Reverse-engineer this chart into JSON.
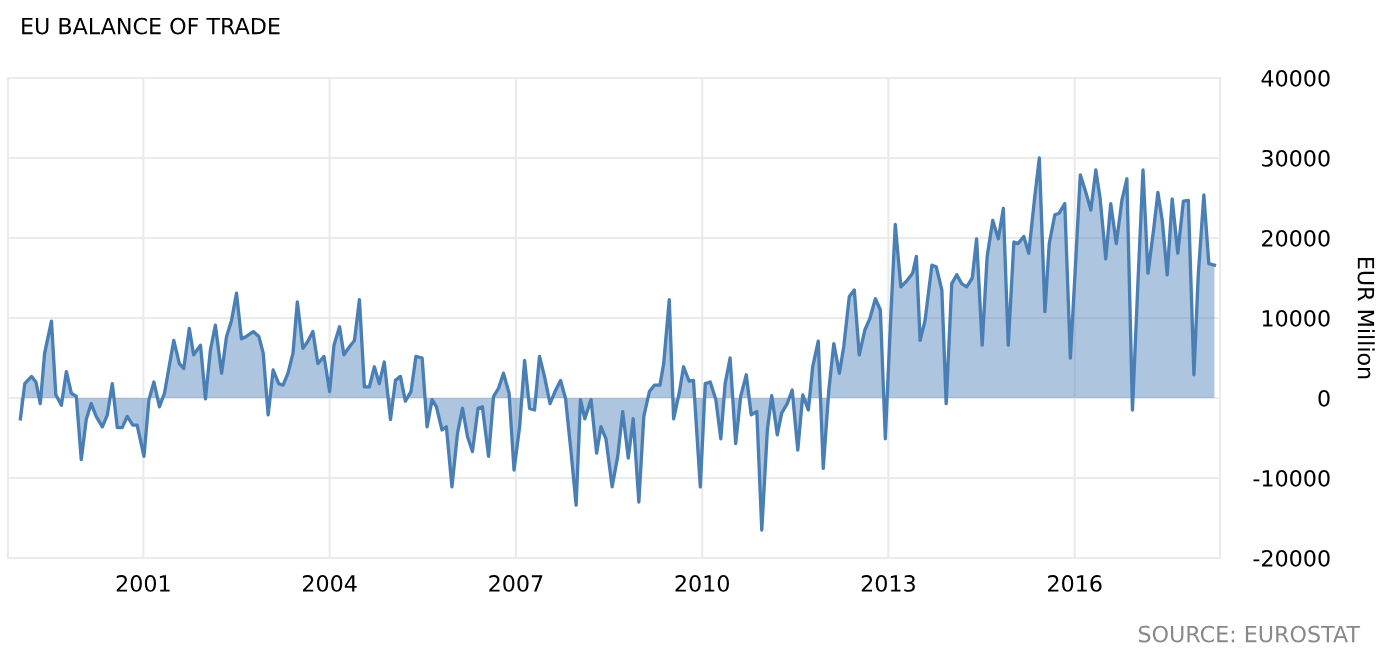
{
  "chart_data": {
    "type": "area",
    "title": "EU BALANCE OF TRADE",
    "ylabel": "EUR Million",
    "annotations": [
      "SOURCE: EUROSTAT"
    ],
    "x": [
      1999.02,
      1999.09,
      1999.2,
      1999.27,
      1999.34,
      1999.41,
      1999.52,
      1999.59,
      1999.68,
      1999.76,
      1999.84,
      1999.92,
      2000.0,
      2000.08,
      2000.16,
      2000.24,
      2000.34,
      2000.42,
      2000.5,
      2000.58,
      2000.66,
      2000.74,
      2000.83,
      2000.9,
      2001.01,
      2001.09,
      2001.17,
      2001.26,
      2001.34,
      2001.49,
      2001.58,
      2001.65,
      2001.74,
      2001.81,
      2001.92,
      2002.0,
      2002.08,
      2002.16,
      2002.26,
      2002.34,
      2002.42,
      2002.5,
      2002.58,
      2002.66,
      2002.77,
      2002.86,
      2002.93,
      2003.01,
      2003.09,
      2003.18,
      2003.25,
      2003.33,
      2003.41,
      2003.48,
      2003.57,
      2003.65,
      2003.73,
      2003.81,
      2003.91,
      2004.0,
      2004.07,
      2004.16,
      2004.23,
      2004.32,
      2004.4,
      2004.48,
      2004.56,
      2004.64,
      2004.72,
      2004.8,
      2004.88,
      2004.98,
      2005.06,
      2005.14,
      2005.22,
      2005.31,
      2005.39,
      2005.49,
      2005.57,
      2005.65,
      2005.72,
      2005.81,
      2005.88,
      2005.97,
      2006.06,
      2006.14,
      2006.22,
      2006.3,
      2006.39,
      2006.46,
      2006.56,
      2006.64,
      2006.72,
      2006.8,
      2006.89,
      2006.97,
      2007.06,
      2007.14,
      2007.22,
      2007.3,
      2007.38,
      2007.46,
      2007.55,
      2007.63,
      2007.72,
      2007.8,
      2007.89,
      2007.97,
      2008.04,
      2008.11,
      2008.21,
      2008.3,
      2008.37,
      2008.45,
      2008.55,
      2008.64,
      2008.72,
      2008.81,
      2008.89,
      2008.98,
      2009.06,
      2009.15,
      2009.23,
      2009.32,
      2009.38,
      2009.47,
      2009.54,
      2009.63,
      2009.7,
      2009.79,
      2009.86,
      2009.97,
      2010.05,
      2010.13,
      2010.22,
      2010.3,
      2010.37,
      2010.45,
      2010.54,
      2010.62,
      2010.71,
      2010.79,
      2010.88,
      2010.96,
      2011.05,
      2011.12,
      2011.21,
      2011.28,
      2011.37,
      2011.45,
      2011.54,
      2011.62,
      2011.71,
      2011.78,
      2011.87,
      2011.95,
      2012.04,
      2012.12,
      2012.21,
      2012.28,
      2012.37,
      2012.45,
      2012.53,
      2012.62,
      2012.7,
      2012.79,
      2012.87,
      2012.95,
      2013.03,
      2013.11,
      2013.2,
      2013.29,
      2013.39,
      2013.45,
      2013.51,
      2013.59,
      2013.7,
      2013.77,
      2013.86,
      2013.93,
      2014.02,
      2014.1,
      2014.18,
      2014.26,
      2014.35,
      2014.42,
      2014.51,
      2014.59,
      2014.68,
      2014.77,
      2014.85,
      2014.93,
      2015.02,
      2015.09,
      2015.18,
      2015.26,
      2015.35,
      2015.43,
      2015.52,
      2015.59,
      2015.68,
      2015.75,
      2015.84,
      2015.93,
      2016.01,
      2016.09,
      2016.18,
      2016.26,
      2016.34,
      2016.41,
      2016.5,
      2016.58,
      2016.67,
      2016.76,
      2016.84,
      2016.93,
      2017.02,
      2017.1,
      2017.18,
      2017.27,
      2017.34,
      2017.41,
      2017.49,
      2017.57,
      2017.66,
      2017.75,
      2017.83,
      2017.92,
      2017.99,
      2018.08,
      2018.16,
      2018.25
    ],
    "series": [
      {
        "color": "#4a7fb5",
        "values": [
          -2600,
          1800,
          2700,
          2000,
          -700,
          5600,
          9600,
          400,
          -900,
          3300,
          600,
          200,
          -7700,
          -2700,
          -700,
          -2300,
          -3600,
          -2100,
          1800,
          -3700,
          -3700,
          -2300,
          -3400,
          -3400,
          -7300,
          -200,
          2000,
          -1100,
          600,
          7200,
          4300,
          3700,
          8700,
          5400,
          6600,
          -100,
          6000,
          9100,
          3100,
          7700,
          9700,
          13100,
          7400,
          7700,
          8300,
          7700,
          5600,
          -2100,
          3500,
          1800,
          1600,
          3100,
          5600,
          12000,
          6200,
          7100,
          8300,
          4300,
          5200,
          800,
          6600,
          8900,
          5400,
          6400,
          7200,
          12300,
          1400,
          1400,
          3900,
          1800,
          4500,
          -2700,
          2200,
          2700,
          -400,
          800,
          5200,
          5000,
          -3600,
          -200,
          -1100,
          -4000,
          -3600,
          -11100,
          -4400,
          -1300,
          -4800,
          -6700,
          -1300,
          -1100,
          -7300,
          200,
          1200,
          3100,
          600,
          -9000,
          -3600,
          4700,
          -1300,
          -1500,
          5200,
          2700,
          -700,
          800,
          2200,
          -100,
          -6900,
          -13400,
          -200,
          -2600,
          -200,
          -6900,
          -3600,
          -5100,
          -11100,
          -7300,
          -1700,
          -7500,
          -2600,
          -13000,
          -2300,
          800,
          1600,
          1600,
          4300,
          12300,
          -2600,
          600,
          3900,
          2100,
          2200,
          -11100,
          1800,
          2000,
          -200,
          -5100,
          1800,
          5000,
          -5700,
          200,
          2900,
          -2100,
          -1700,
          -16500,
          -4000,
          300,
          -4600,
          -1900,
          -700,
          1000,
          -6500,
          400,
          -1500,
          3900,
          7100,
          -8800,
          1000,
          6800,
          3100,
          6400,
          12700,
          13500,
          5400,
          8500,
          9900,
          12400,
          11000,
          -5100,
          8900,
          21700,
          13900,
          14600,
          15600,
          17700,
          7200,
          9700,
          16600,
          16400,
          13500,
          -700,
          14300,
          15400,
          14300,
          13900,
          15000,
          19900,
          6600,
          17700,
          22200,
          19900,
          23700,
          6600,
          19500,
          19300,
          20200,
          18100,
          24700,
          30000,
          10800,
          19300,
          22900,
          23100,
          24300,
          5000,
          16200,
          27900,
          25700,
          23500,
          28500,
          24900,
          17400,
          24300,
          19300,
          24700,
          27400,
          -1500,
          14700,
          28500,
          15600,
          21000,
          25700,
          22200,
          15400,
          24900,
          18100,
          24600,
          24700,
          2900,
          15400,
          25400,
          16800,
          16600
        ]
      }
    ],
    "xlim": [
      1998.82,
      2018.34
    ],
    "xticks": [
      2001,
      2004,
      2007,
      2010,
      2013,
      2016
    ],
    "ylim": [
      -20000,
      40000
    ],
    "yticks": [
      -20000,
      -10000,
      0,
      10000,
      20000,
      30000,
      40000
    ],
    "grid": true,
    "line_style": "solid"
  }
}
